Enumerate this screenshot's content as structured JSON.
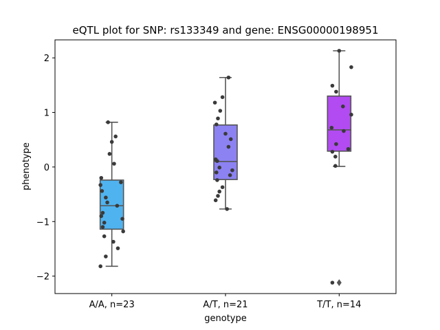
{
  "chart_data": {
    "type": "box",
    "title": "eQTL plot for SNP: rs133349 and gene: ENSG00000198951",
    "xlabel": "genotype",
    "ylabel": "phenotype",
    "ylim": [
      -2.32,
      2.33
    ],
    "yticks": [
      -2,
      -1,
      0,
      1,
      2
    ],
    "ytick_labels": [
      "−2",
      "−1",
      "0",
      "1",
      "2"
    ],
    "grid": false,
    "categories": [
      "A/A, n=23",
      "A/T, n=21",
      "T/T, n=14"
    ],
    "colors": [
      "#4fb3f0",
      "#8c82f2",
      "#b24bf2"
    ],
    "boxes": [
      {
        "q1": -1.14,
        "median": -0.71,
        "q3": -0.24,
        "whisker_low": -1.82,
        "whisker_high": 0.82,
        "outliers": []
      },
      {
        "q1": -0.23,
        "median": 0.1,
        "q3": 0.77,
        "whisker_low": -0.77,
        "whisker_high": 1.64,
        "outliers": []
      },
      {
        "q1": 0.29,
        "median": 0.68,
        "q3": 1.3,
        "whisker_low": 0.01,
        "whisker_high": 2.13,
        "outliers": [
          -2.12
        ]
      }
    ],
    "points": [
      [
        {
          "dx": -0.05,
          "y": 0.82
        },
        {
          "dx": 0.05,
          "y": 0.56
        },
        {
          "dx": 0.0,
          "y": 0.46
        },
        {
          "dx": -0.03,
          "y": 0.24
        },
        {
          "dx": 0.03,
          "y": 0.06
        },
        {
          "dx": -0.14,
          "y": -0.2
        },
        {
          "dx": 0.12,
          "y": -0.28
        },
        {
          "dx": -0.15,
          "y": -0.33
        },
        {
          "dx": -0.13,
          "y": -0.44
        },
        {
          "dx": -0.08,
          "y": -0.56
        },
        {
          "dx": -0.06,
          "y": -0.65
        },
        {
          "dx": 0.07,
          "y": -0.71
        },
        {
          "dx": -0.12,
          "y": -0.84
        },
        {
          "dx": -0.14,
          "y": -0.9
        },
        {
          "dx": 0.14,
          "y": -0.95
        },
        {
          "dx": -0.1,
          "y": -1.02
        },
        {
          "dx": -0.12,
          "y": -1.1
        },
        {
          "dx": 0.15,
          "y": -1.18
        },
        {
          "dx": -0.1,
          "y": -1.27
        },
        {
          "dx": 0.02,
          "y": -1.37
        },
        {
          "dx": 0.08,
          "y": -1.49
        },
        {
          "dx": -0.08,
          "y": -1.64
        },
        {
          "dx": -0.15,
          "y": -1.82
        }
      ],
      [
        {
          "dx": 0.04,
          "y": 1.64
        },
        {
          "dx": -0.04,
          "y": 1.28
        },
        {
          "dx": -0.14,
          "y": 1.18
        },
        {
          "dx": -0.07,
          "y": 1.03
        },
        {
          "dx": -0.1,
          "y": 0.89
        },
        {
          "dx": -0.12,
          "y": 0.78
        },
        {
          "dx": 0.0,
          "y": 0.61
        },
        {
          "dx": 0.07,
          "y": 0.51
        },
        {
          "dx": 0.04,
          "y": 0.37
        },
        {
          "dx": -0.13,
          "y": 0.14
        },
        {
          "dx": -0.11,
          "y": 0.11
        },
        {
          "dx": -0.08,
          "y": -0.01
        },
        {
          "dx": 0.09,
          "y": -0.06
        },
        {
          "dx": -0.12,
          "y": -0.1
        },
        {
          "dx": 0.06,
          "y": -0.15
        },
        {
          "dx": -0.11,
          "y": -0.24
        },
        {
          "dx": -0.04,
          "y": -0.37
        },
        {
          "dx": -0.08,
          "y": -0.45
        },
        {
          "dx": -0.1,
          "y": -0.53
        },
        {
          "dx": -0.13,
          "y": -0.61
        },
        {
          "dx": 0.02,
          "y": -0.77
        }
      ],
      [
        {
          "dx": 0.0,
          "y": 2.13
        },
        {
          "dx": 0.16,
          "y": 1.83
        },
        {
          "dx": -0.09,
          "y": 1.49
        },
        {
          "dx": -0.04,
          "y": 1.38
        },
        {
          "dx": 0.05,
          "y": 1.11
        },
        {
          "dx": 0.16,
          "y": 0.96
        },
        {
          "dx": -0.1,
          "y": 0.72
        },
        {
          "dx": 0.06,
          "y": 0.66
        },
        {
          "dx": -0.04,
          "y": 0.42
        },
        {
          "dx": 0.12,
          "y": 0.33
        },
        {
          "dx": -0.09,
          "y": 0.28
        },
        {
          "dx": -0.05,
          "y": 0.19
        },
        {
          "dx": -0.05,
          "y": 0.02
        },
        {
          "dx": -0.09,
          "y": -2.12
        }
      ]
    ]
  }
}
